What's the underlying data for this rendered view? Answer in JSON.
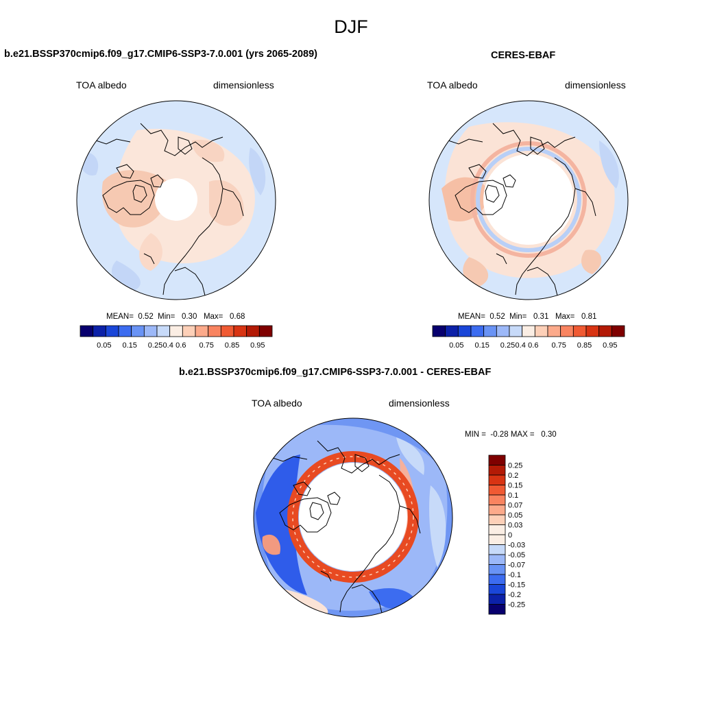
{
  "figure": {
    "title": "DJF"
  },
  "panels": [
    {
      "title": "b.e21.BSSP370cmip6.f09_g17.CMIP6-SSP3-7.0.001 (yrs 2065-2089)",
      "variable": "TOA albedo",
      "units": "dimensionless",
      "stats": {
        "mean_label": "MEAN=",
        "mean": "0.52",
        "min_label": "Min=",
        "min": "0.30",
        "max_label": "Max=",
        "max": "0.68"
      }
    },
    {
      "title": "CERES-EBAF",
      "variable": "TOA albedo",
      "units": "dimensionless",
      "stats": {
        "mean_label": "MEAN=",
        "mean": "0.52",
        "min_label": "Min=",
        "min": "0.31",
        "max_label": "Max=",
        "max": "0.81"
      }
    },
    {
      "title": "b.e21.BSSP370cmip6.f09_g17.CMIP6-SSP3-7.0.001 - CERES-EBAF",
      "variable": "TOA albedo",
      "units": "dimensionless",
      "stats": {
        "min_label": "MIN =",
        "min": "-0.28",
        "max_label": "MAX =",
        "max": "0.30"
      }
    }
  ],
  "colorbar_top": {
    "colors": [
      "#08006e",
      "#0c21a8",
      "#1a46d8",
      "#3c6cf0",
      "#6993f5",
      "#9cb8f8",
      "#c7daf9",
      "#fbeee4",
      "#fdd0b8",
      "#fcaa8b",
      "#f98460",
      "#f05a33",
      "#d83413",
      "#b31a06",
      "#7f0000"
    ],
    "tick_labels": [
      "0.05",
      "0.15",
      "0.25",
      "0.4",
      "0.6",
      "0.75",
      "0.85",
      "0.95"
    ]
  },
  "colorbar_diff": {
    "colors": [
      "#7f0000",
      "#b31a06",
      "#d83413",
      "#f05a33",
      "#f98460",
      "#fcaa8b",
      "#fdd0b8",
      "#fbeee4",
      "#c7daf9",
      "#9cb8f8",
      "#6993f5",
      "#3c6cf0",
      "#1a46d8",
      "#0c21a8",
      "#08006e"
    ],
    "tick_labels": [
      "0.25",
      "0.2",
      "0.15",
      "0.1",
      "0.07",
      "0.05",
      "0.03",
      "0",
      "-0.03",
      "-0.05",
      "-0.07",
      "-0.1",
      "-0.15",
      "-0.2",
      "-0.25"
    ]
  }
}
